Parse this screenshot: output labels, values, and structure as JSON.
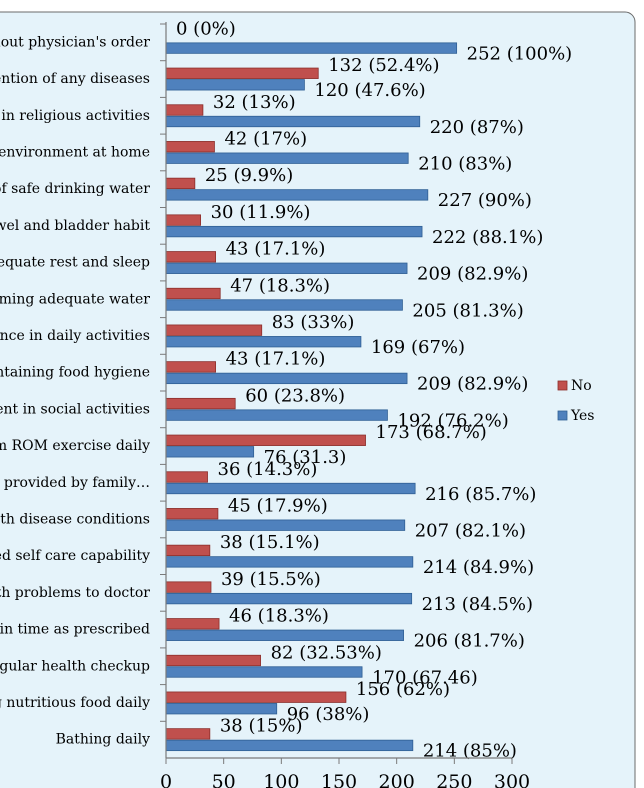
{
  "chart_data": {
    "type": "bar",
    "orientation": "horizontal",
    "categories": [
      "Bathing daily",
      "g nutritious food daily",
      "egular health checkup",
      "s in time as prescribed",
      "lth problems to doctor",
      "sed self care capability",
      "vith disease conditions",
      "nce provided by family…",
      "rm ROM exercise daily",
      "ment in social activities",
      "intaining food hygiene",
      "ance in daily activities",
      "uming adequate water",
      "dequate rest and sleep",
      "owel and bladder habit",
      "of safe drinking water",
      " environment at home",
      "t in religious activities",
      "ention of any diseases",
      "hout physician's order"
    ],
    "series": [
      {
        "name": "No",
        "color": "#c0504d",
        "values": [
          38,
          156,
          82,
          46,
          39,
          38,
          45,
          36,
          173,
          60,
          43,
          83,
          47,
          43,
          30,
          25,
          42,
          32,
          132,
          0
        ],
        "labels": [
          "38 (15%)",
          "156 (62%)",
          "82 (32.53%)",
          "46 (18.3%)",
          "39 (15.5%)",
          "38 (15.1%)",
          "45 (17.9%)",
          "36 (14.3%)",
          "173 (68.7%)",
          "60 (23.8%)",
          "43 (17.1%)",
          "83 (33%)",
          "47 (18.3%)",
          "43 (17.1%)",
          "30 (11.9%)",
          "25 (9.9%)",
          "42 (17%)",
          "32 (13%)",
          "132 (52.4%)",
          "0 (0%)"
        ]
      },
      {
        "name": "Yes",
        "color": "#4f81bd",
        "values": [
          214,
          96,
          170,
          206,
          213,
          214,
          207,
          216,
          76,
          192,
          209,
          169,
          205,
          209,
          222,
          227,
          210,
          220,
          120,
          252
        ],
        "labels": [
          "214 (85%)",
          "96 (38%)",
          "170 (67.46)",
          "206 (81.7%)",
          "213 (84.5%)",
          "214 (84.9%)",
          "207 (82.1%)",
          "216 (85.7%)",
          "76 (31.3)",
          "192 (76.2%)",
          "209 (82.9%)",
          "169 (67%)",
          "205 (81.3%)",
          "209 (82.9%)",
          "222 (88.1%)",
          "227 (90%)",
          "210 (83%)",
          "220 (87%)",
          "120 (47.6%)",
          "252 (100%)"
        ]
      }
    ],
    "x_ticks": [
      "0",
      "50",
      "100",
      "150",
      "200",
      "250",
      "300"
    ],
    "xlim": [
      0,
      300
    ],
    "legend": "right",
    "legend_order": [
      "No",
      "Yes"
    ],
    "grid": false
  }
}
